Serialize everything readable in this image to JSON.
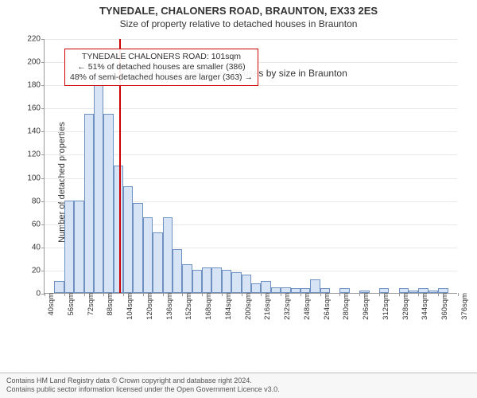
{
  "title_main": "TYNEDALE, CHALONERS ROAD, BRAUNTON, EX33 2ES",
  "title_sub": "Size of property relative to detached houses in Braunton",
  "chart": {
    "type": "histogram",
    "ylabel": "Number of detached properties",
    "xlabel": "Distribution of detached houses by size in Braunton",
    "ymax": 220,
    "ytick_step": 20,
    "yticks": [
      0,
      20,
      40,
      60,
      80,
      100,
      120,
      140,
      160,
      180,
      200,
      220
    ],
    "bar_fill": "#d6e4f5",
    "bar_stroke": "#6f91c2",
    "background_color": "#ffffff",
    "grid_color": "#e8e8e8",
    "axis_color": "#999999",
    "marker_color": "#cc0000",
    "marker_x": 101,
    "x_start": 40,
    "x_bin_width": 8,
    "bin_count": 42,
    "values": [
      0,
      10,
      80,
      80,
      155,
      187,
      155,
      110,
      92,
      78,
      65,
      52,
      65,
      38,
      25,
      20,
      22,
      22,
      20,
      18,
      16,
      8,
      10,
      5,
      5,
      4,
      4,
      12,
      4,
      0,
      4,
      0,
      2,
      0,
      4,
      0,
      4,
      2,
      4,
      2,
      4,
      0
    ],
    "xtick_every": 2,
    "xtick_unit": "sqm"
  },
  "annotation": {
    "border_color": "#cc0000",
    "line1": "TYNEDALE CHALONERS ROAD: 101sqm",
    "line2": "← 51% of detached houses are smaller (386)",
    "line3": "48% of semi-detached houses are larger (363) →"
  },
  "footer": {
    "line1": "Contains HM Land Registry data © Crown copyright and database right 2024.",
    "line2": "Contains public sector information licensed under the Open Government Licence v3.0."
  }
}
